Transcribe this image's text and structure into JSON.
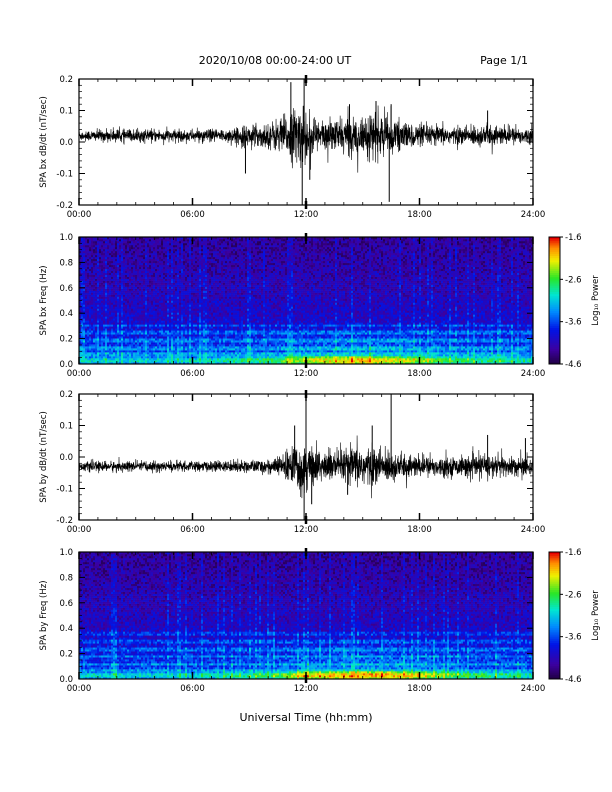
{
  "header": {
    "title": "2020/10/08  00:00-24:00 UT",
    "page": "Page 1/1"
  },
  "xlabel": "Universal Time (hh:mm)",
  "chart_data": [
    {
      "type": "line",
      "ylabel": "SPA bx dB/dt (nT/sec)",
      "xlim": [
        0,
        24
      ],
      "ylim": [
        -0.2,
        0.2
      ],
      "xticks": [
        "00:00",
        "06:00",
        "12:00",
        "18:00",
        "24:00"
      ],
      "yticks": [
        "-0.2",
        "-0.1",
        "0.0",
        "0.1",
        "0.2"
      ],
      "baseline": 0.02,
      "envelope": [
        {
          "t": 0,
          "amp": 0.015
        },
        {
          "t": 2,
          "amp": 0.018
        },
        {
          "t": 4,
          "amp": 0.018
        },
        {
          "t": 6,
          "amp": 0.017
        },
        {
          "t": 8,
          "amp": 0.02
        },
        {
          "t": 9,
          "amp": 0.03
        },
        {
          "t": 10,
          "amp": 0.035
        },
        {
          "t": 11,
          "amp": 0.06
        },
        {
          "t": 11.7,
          "amp": 0.09
        },
        {
          "t": 12,
          "amp": 0.07
        },
        {
          "t": 13,
          "amp": 0.04
        },
        {
          "t": 14,
          "amp": 0.05
        },
        {
          "t": 15,
          "amp": 0.06
        },
        {
          "t": 16,
          "amp": 0.06
        },
        {
          "t": 17,
          "amp": 0.04
        },
        {
          "t": 18,
          "amp": 0.03
        },
        {
          "t": 20,
          "amp": 0.025
        },
        {
          "t": 21.5,
          "amp": 0.03
        },
        {
          "t": 24,
          "amp": 0.02
        }
      ],
      "spikes": [
        {
          "t": 8.8,
          "v": -0.1
        },
        {
          "t": 11.2,
          "v": 0.19
        },
        {
          "t": 11.8,
          "v": -0.2
        },
        {
          "t": 11.9,
          "v": 0.2
        },
        {
          "t": 12.2,
          "v": -0.12
        },
        {
          "t": 14.3,
          "v": 0.12
        },
        {
          "t": 15.7,
          "v": 0.13
        },
        {
          "t": 16.4,
          "v": -0.19
        },
        {
          "t": 16.5,
          "v": 0.12
        },
        {
          "t": 21.6,
          "v": 0.1
        }
      ]
    },
    {
      "type": "heatmap",
      "ylabel": "SPA bx Freq (Hz)",
      "colorbar_label": "Log₁₀ Power",
      "xlim": [
        0,
        24
      ],
      "ylim": [
        0,
        1.0
      ],
      "xticks": [
        "00:00",
        "06:00",
        "12:00",
        "18:00",
        "24:00"
      ],
      "yticks": [
        "0.0",
        "0.2",
        "0.4",
        "0.6",
        "0.8",
        "1.0"
      ],
      "colorbar_ticks": [
        "-1.6",
        "-2.6",
        "-3.6",
        "-4.6"
      ],
      "clim": [
        -4.6,
        -1.6
      ],
      "activity": [
        {
          "t": 0,
          "level": 0.2
        },
        {
          "t": 6,
          "level": 0.2
        },
        {
          "t": 10,
          "level": 0.4
        },
        {
          "t": 12,
          "level": 0.7
        },
        {
          "t": 15,
          "level": 0.85
        },
        {
          "t": 17,
          "level": 0.7
        },
        {
          "t": 20,
          "level": 0.4
        },
        {
          "t": 24,
          "level": 0.3
        }
      ],
      "bands": [
        0.02,
        0.07,
        0.12,
        0.18,
        0.24,
        0.3
      ]
    },
    {
      "type": "line",
      "ylabel": "SPA by dB/dt (nT/sec)",
      "xlim": [
        0,
        24
      ],
      "ylim": [
        -0.2,
        0.2
      ],
      "xticks": [
        "00:00",
        "06:00",
        "12:00",
        "18:00",
        "24:00"
      ],
      "yticks": [
        "-0.2",
        "-0.1",
        "0.0",
        "0.1",
        "0.2"
      ],
      "baseline": -0.03,
      "envelope": [
        {
          "t": 0,
          "amp": 0.013
        },
        {
          "t": 2,
          "amp": 0.015
        },
        {
          "t": 4,
          "amp": 0.015
        },
        {
          "t": 6,
          "amp": 0.014
        },
        {
          "t": 8,
          "amp": 0.015
        },
        {
          "t": 9.5,
          "amp": 0.018
        },
        {
          "t": 10.5,
          "amp": 0.025
        },
        {
          "t": 11.2,
          "amp": 0.05
        },
        {
          "t": 11.8,
          "amp": 0.08
        },
        {
          "t": 12.5,
          "amp": 0.05
        },
        {
          "t": 13.5,
          "amp": 0.045
        },
        {
          "t": 15,
          "amp": 0.06
        },
        {
          "t": 16,
          "amp": 0.05
        },
        {
          "t": 17,
          "amp": 0.035
        },
        {
          "t": 18,
          "amp": 0.03
        },
        {
          "t": 20,
          "amp": 0.025
        },
        {
          "t": 21.5,
          "amp": 0.035
        },
        {
          "t": 24,
          "amp": 0.025
        }
      ],
      "spikes": [
        {
          "t": 11.4,
          "v": 0.1
        },
        {
          "t": 11.9,
          "v": -0.2
        },
        {
          "t": 12.0,
          "v": 0.2
        },
        {
          "t": 12.3,
          "v": -0.15
        },
        {
          "t": 14.2,
          "v": -0.12
        },
        {
          "t": 15.5,
          "v": 0.1
        },
        {
          "t": 16.5,
          "v": 0.2
        },
        {
          "t": 21.6,
          "v": 0.07
        },
        {
          "t": 23.6,
          "v": 0.06
        }
      ]
    },
    {
      "type": "heatmap",
      "ylabel": "SPA by Freq (Hz)",
      "colorbar_label": "Log₁₀ Power",
      "xlim": [
        0,
        24
      ],
      "ylim": [
        0,
        1.0
      ],
      "xticks": [
        "00:00",
        "06:00",
        "12:00",
        "18:00",
        "24:00"
      ],
      "yticks": [
        "0.0",
        "0.2",
        "0.4",
        "0.6",
        "0.8",
        "1.0"
      ],
      "colorbar_ticks": [
        "-1.6",
        "-2.6",
        "-3.6",
        "-4.6"
      ],
      "clim": [
        -4.6,
        -1.6
      ],
      "activity": [
        {
          "t": 0,
          "level": 0.2
        },
        {
          "t": 6,
          "level": 0.2
        },
        {
          "t": 10,
          "level": 0.4
        },
        {
          "t": 12,
          "level": 0.75
        },
        {
          "t": 15,
          "level": 0.9
        },
        {
          "t": 17,
          "level": 0.8
        },
        {
          "t": 20,
          "level": 0.45
        },
        {
          "t": 24,
          "level": 0.3
        }
      ],
      "bands": [
        0.02,
        0.06,
        0.11,
        0.17,
        0.23,
        0.29,
        0.35
      ]
    }
  ]
}
